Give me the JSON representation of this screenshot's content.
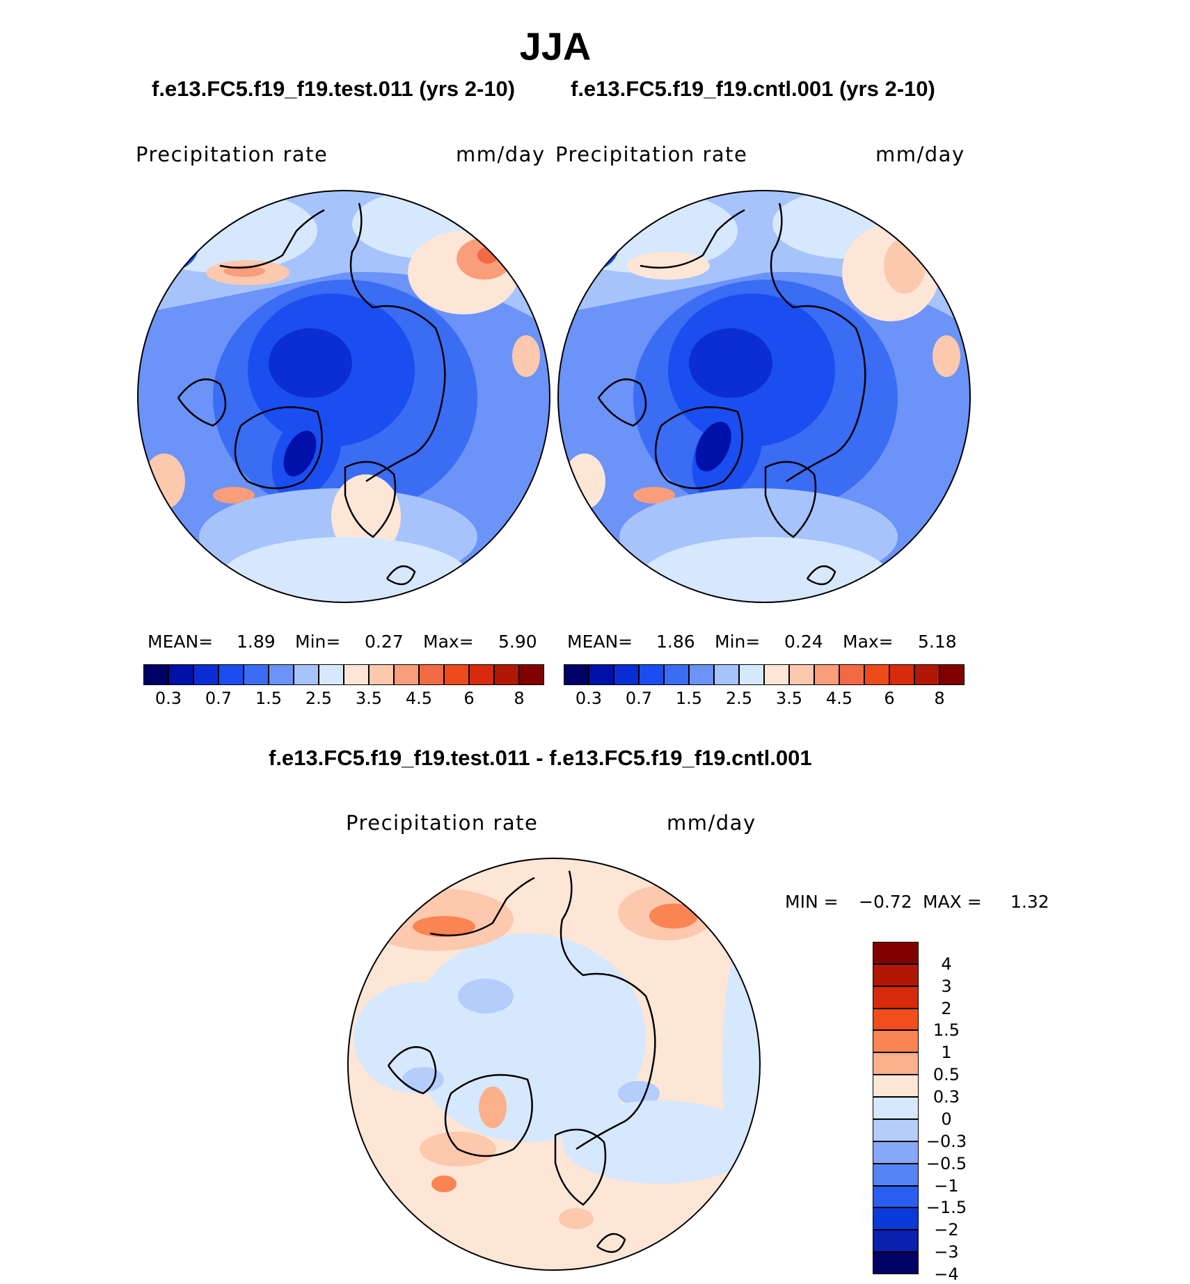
{
  "season": "JJA",
  "panels": [
    {
      "case_title": "f.e13.FC5.f19_f19.test.011 (yrs 2-10)",
      "variable": "Precipitation  rate",
      "units": "mm/day",
      "stats": {
        "mean_label": "MEAN=",
        "mean": "1.89",
        "min_label": "Min=",
        "min": "0.27",
        "max_label": "Max=",
        "max": "5.90"
      }
    },
    {
      "case_title": "f.e13.FC5.f19_f19.cntl.001 (yrs 2-10)",
      "variable": "Precipitation  rate",
      "units": "mm/day",
      "stats": {
        "mean_label": "MEAN=",
        "mean": "1.86",
        "min_label": "Min=",
        "min": "0.24",
        "max_label": "Max=",
        "max": "5.18"
      }
    }
  ],
  "diff_panel": {
    "title": "f.e13.FC5.f19_f19.test.011 - f.e13.FC5.f19_f19.cntl.001",
    "variable": "Precipitation  rate",
    "units": "mm/day",
    "stats": {
      "min_label": "MIN =",
      "min": "−0.72",
      "max_label": "MAX =",
      "max": "1.32"
    }
  },
  "precip_colorbar": {
    "colors": [
      "#000066",
      "#0011aa",
      "#0a2ed4",
      "#1a4ef0",
      "#3a6cf4",
      "#6b93f8",
      "#a6c3fb",
      "#d6e8fd",
      "#fde6d6",
      "#fcc8ae",
      "#fa9d7a",
      "#f26a43",
      "#ee4a1c",
      "#d82a0c",
      "#b01805",
      "#800000"
    ],
    "tick_labels": [
      "0.3",
      "0.7",
      "1.5",
      "2.5",
      "3.5",
      "4.5",
      "6",
      "8"
    ]
  },
  "diff_colorbar": {
    "colors": [
      "#800000",
      "#b01805",
      "#d82a0c",
      "#f24e1c",
      "#fa8452",
      "#fcb08a",
      "#fde6d6",
      "#d6e8fd",
      "#b4cdfb",
      "#86a8f8",
      "#5584f4",
      "#2a5ef0",
      "#0a3ad8",
      "#0a20b0",
      "#000066"
    ],
    "tick_labels": [
      "4",
      "3",
      "2",
      "1.5",
      "1",
      "0.5",
      "0.3",
      "0",
      "−0.3",
      "−0.5",
      "−1",
      "−1.5",
      "−2",
      "−3",
      "−4"
    ]
  }
}
